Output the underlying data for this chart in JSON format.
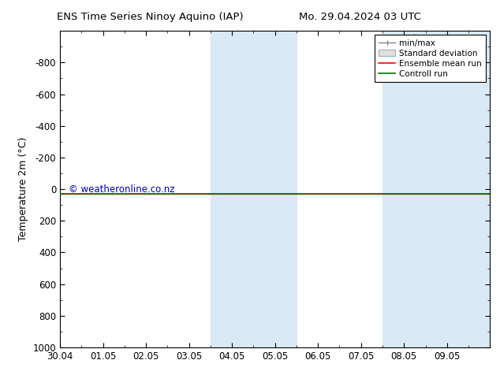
{
  "title_left": "ENS Time Series Ninoy Aquino (IAP)",
  "title_right": "Mo. 29.04.2024 03 UTC",
  "ylabel": "Temperature 2m (°C)",
  "ylim_top": -1000,
  "ylim_bottom": 1000,
  "yticks": [
    -800,
    -600,
    -400,
    -200,
    0,
    200,
    400,
    600,
    800,
    1000
  ],
  "xlim": [
    0,
    10
  ],
  "xtick_labels": [
    "30.04",
    "01.05",
    "02.05",
    "03.05",
    "04.05",
    "05.05",
    "06.05",
    "07.05",
    "08.05",
    "09.05"
  ],
  "xtick_positions": [
    0,
    1,
    2,
    3,
    4,
    5,
    6,
    7,
    8,
    9
  ],
  "shaded_regions": [
    [
      3.5,
      4.5
    ],
    [
      4.5,
      5.5
    ],
    [
      7.5,
      8.5
    ],
    [
      8.5,
      10.0
    ]
  ],
  "shade_color": "#daeaf5",
  "line_y": 28.0,
  "ensemble_mean_color": "#ff0000",
  "control_run_color": "#007700",
  "watermark": "© weatheronline.co.nz",
  "watermark_color": "#0000bb",
  "background_color": "#ffffff",
  "legend_labels": [
    "min/max",
    "Standard deviation",
    "Ensemble mean run",
    "Controll run"
  ],
  "minmax_color": "#888888",
  "stddev_color": "#cccccc"
}
